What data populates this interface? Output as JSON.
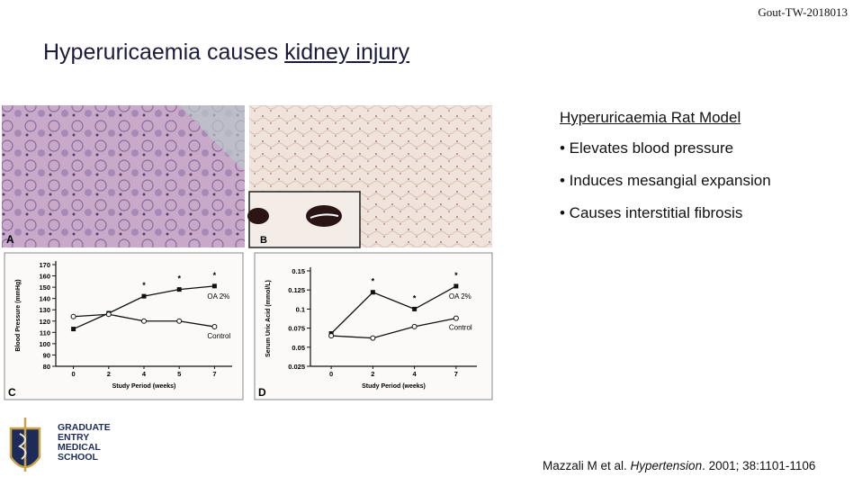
{
  "header": {
    "code": "Gout-TW-2018013",
    "title_plain": "Hyperuricaemia causes ",
    "title_underlined": "kidney injury"
  },
  "images": {
    "a_label": "A",
    "b_label": "B"
  },
  "charts": [
    {
      "type": "line",
      "panel_label": "C",
      "y_label": "Blood Pressure (mmHg)",
      "x_label": "Study Period (weeks)",
      "categories": [
        "0",
        "2",
        "4",
        "5",
        "7"
      ],
      "ylim": [
        80,
        170
      ],
      "yticks": [
        80,
        90,
        100,
        110,
        120,
        130,
        140,
        150,
        160,
        170
      ],
      "significance_marker": "*",
      "significant_categories": [
        "4",
        "5",
        "7"
      ],
      "series": [
        {
          "name": "OA 2%",
          "color": "#111111",
          "marker": "filled",
          "values": [
            113,
            127,
            142,
            148,
            151
          ]
        },
        {
          "name": "Control",
          "color": "#111111",
          "marker": "open",
          "values": [
            124,
            126,
            120,
            120,
            115
          ]
        }
      ]
    },
    {
      "type": "line",
      "panel_label": "D",
      "y_label": "Serum Uric Acid (mmol/L)",
      "x_label": "Study Period (weeks)",
      "categories": [
        "0",
        "2",
        "4",
        "7"
      ],
      "ylim": [
        0.025,
        0.15
      ],
      "yticks": [
        0.025,
        0.05,
        0.075,
        0.1,
        0.125,
        0.15
      ],
      "significance_marker": "*",
      "significant_categories": [
        "2",
        "4",
        "7"
      ],
      "series": [
        {
          "name": "OA 2%",
          "color": "#111111",
          "marker": "filled",
          "values": [
            0.068,
            0.122,
            0.1,
            0.13
          ]
        },
        {
          "name": "Control",
          "color": "#111111",
          "marker": "open",
          "values": [
            0.065,
            0.062,
            0.077,
            0.088
          ]
        }
      ]
    }
  ],
  "side": {
    "heading": "Hyperuricaemia Rat Model",
    "bullets": [
      "• Elevates blood pressure",
      "• Induces mesangial expansion",
      "• Causes interstitial fibrosis"
    ],
    "citation": {
      "before": "Mazzali M et al. ",
      "journal": "Hypertension",
      "after": ". 2001; 38:1101-1106"
    }
  },
  "logo": {
    "lines": [
      "GRADUATE",
      "ENTRY",
      "MEDICAL",
      "SCHOOL"
    ]
  }
}
